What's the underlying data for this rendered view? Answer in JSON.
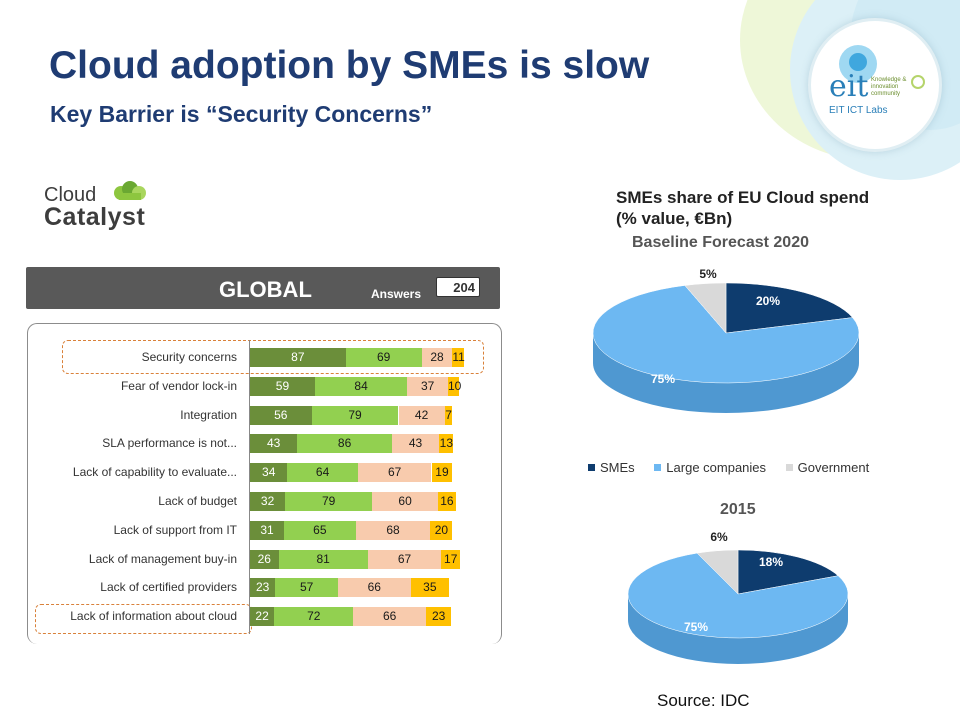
{
  "slide": {
    "title": "Cloud adoption by SMEs is slow",
    "subtitle": "Key Barrier is “Security Concerns”",
    "source": "Source: IDC"
  },
  "logo": {
    "word": "eit",
    "small_text": "Knowledge & innovation community",
    "caption": "EIT ICT Labs"
  },
  "brand": {
    "cloud": "Cloud",
    "catalyst": "Catalyst"
  },
  "colors": {
    "title": "#1f3c73",
    "seg1": "#6b8e3a",
    "seg2": "#92d050",
    "seg3": "#f8cbad",
    "seg4": "#ffc000",
    "sme": "#0e3c6e",
    "large": "#6db8f2",
    "gov": "#d9d9d9"
  },
  "chart_data": [
    {
      "type": "bar",
      "title": "GLOBAL",
      "answers_label": "Answers",
      "answers_value": "204",
      "categories": [
        "Security concerns",
        "Fear of vendor lock-in",
        "Integration",
        "SLA performance is not...",
        "Lack of capability to evaluate...",
        "Lack of budget",
        "Lack of support from IT",
        "Lack of management buy-in",
        "Lack of certified providers",
        "Lack of information about cloud"
      ],
      "series": [
        {
          "values": [
            87,
            59,
            56,
            43,
            34,
            32,
            31,
            26,
            23,
            22
          ]
        },
        {
          "values": [
            69,
            84,
            79,
            86,
            64,
            79,
            65,
            81,
            57,
            72
          ]
        },
        {
          "values": [
            28,
            37,
            42,
            43,
            67,
            60,
            68,
            67,
            66,
            66
          ]
        },
        {
          "values": [
            11,
            10,
            7,
            13,
            19,
            16,
            20,
            17,
            35,
            23
          ]
        }
      ],
      "stacked": true,
      "orientation": "horizontal",
      "highlighted": [
        "Security concerns",
        "Lack of information about cloud"
      ]
    },
    {
      "type": "pie",
      "title": "SMEs share of EU Cloud spend (% value, €Bn)",
      "subtitle": "Baseline Forecast 2020",
      "labels": [
        "SMEs",
        "Large companies",
        "Government"
      ],
      "values": [
        20,
        75,
        5
      ],
      "value_labels": [
        "20%",
        "75%",
        "5%"
      ]
    },
    {
      "type": "pie",
      "title": "2015",
      "labels": [
        "SMEs",
        "Large companies",
        "Government"
      ],
      "values": [
        18,
        75,
        6
      ],
      "value_labels": [
        "18%",
        "75%",
        "6%"
      ]
    }
  ],
  "legend": [
    "SMEs",
    "Large companies",
    "Government"
  ]
}
